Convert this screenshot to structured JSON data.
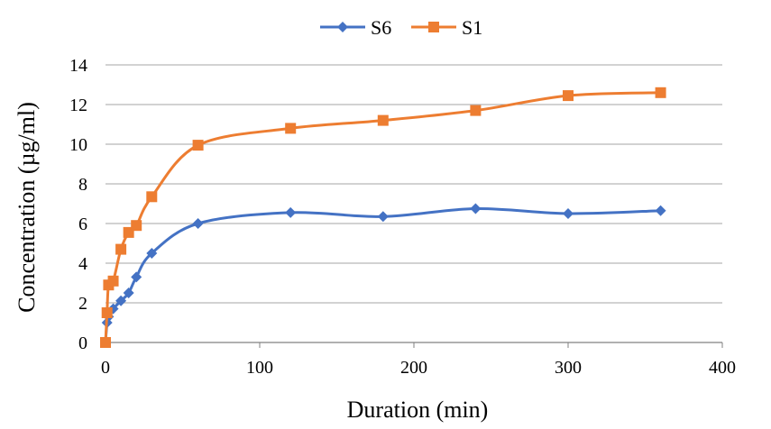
{
  "chart_data": {
    "type": "line",
    "title": "",
    "xlabel": "Duration (min)",
    "ylabel": "Concentration (µg/ml)",
    "xlim": [
      0,
      400
    ],
    "ylim": [
      0,
      14
    ],
    "x_ticks": [
      0,
      100,
      200,
      300,
      400
    ],
    "y_ticks": [
      0,
      2,
      4,
      6,
      8,
      10,
      12,
      14
    ],
    "grid": "horizontal",
    "legend_position": "top-center",
    "series": [
      {
        "name": "S6",
        "color": "#4472c4",
        "marker": "diamond",
        "x": [
          0,
          1,
          2,
          5,
          10,
          15,
          20,
          30,
          60,
          120,
          180,
          240,
          300,
          360
        ],
        "y": [
          0,
          1.0,
          1.3,
          1.7,
          2.1,
          2.5,
          3.3,
          4.5,
          6.0,
          6.55,
          6.35,
          6.75,
          6.5,
          6.65
        ]
      },
      {
        "name": "S1",
        "color": "#ed7d31",
        "marker": "square",
        "x": [
          0,
          1,
          2,
          5,
          10,
          15,
          20,
          30,
          60,
          120,
          180,
          240,
          300,
          360
        ],
        "y": [
          0,
          1.5,
          2.9,
          3.1,
          4.7,
          5.55,
          5.9,
          7.35,
          9.95,
          10.8,
          11.2,
          11.7,
          12.45,
          12.6
        ]
      }
    ]
  }
}
